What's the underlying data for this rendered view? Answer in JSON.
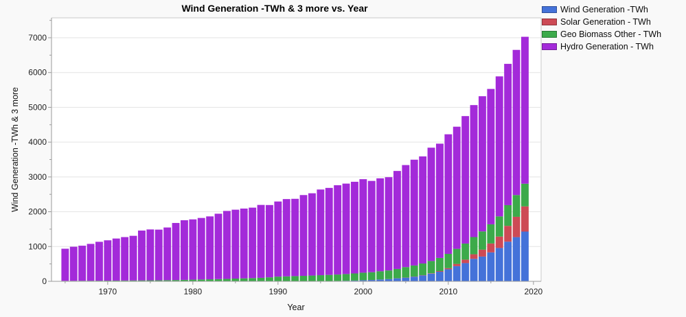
{
  "figure": {
    "background": "#f9f9f9",
    "plot_background": "#ffffff",
    "gridline_color": "#e3e3e3",
    "border_color": "#c9c9c9",
    "axis_color": "#9a9a9a"
  },
  "chart_data": {
    "type": "bar",
    "stacked": true,
    "title": "Wind Generation -TWh & 3 more vs. Year",
    "xlabel": "Year",
    "ylabel": "Wind Generation -TWh & 3 more",
    "legend_position": "top-right",
    "grid": "horizontal-major",
    "xlim": [
      1963.4,
      2020.9
    ],
    "ylim": [
      0,
      7570
    ],
    "yticks": [
      0,
      1000,
      2000,
      3000,
      4000,
      5000,
      6000,
      7000
    ],
    "ytick_minor_step": 500,
    "xticks_major": [
      1970,
      1980,
      1990,
      2000,
      2010,
      2020
    ],
    "xticks_minor": [
      1965,
      1975,
      1985,
      1995,
      2005,
      2015
    ],
    "x": [
      1965,
      1966,
      1967,
      1968,
      1969,
      1970,
      1971,
      1972,
      1973,
      1974,
      1975,
      1976,
      1977,
      1978,
      1979,
      1980,
      1981,
      1982,
      1983,
      1984,
      1985,
      1986,
      1987,
      1988,
      1989,
      1990,
      1991,
      1992,
      1993,
      1994,
      1995,
      1996,
      1997,
      1998,
      1999,
      2000,
      2001,
      2002,
      2003,
      2004,
      2005,
      2006,
      2007,
      2008,
      2009,
      2010,
      2011,
      2012,
      2013,
      2014,
      2015,
      2016,
      2017,
      2018,
      2019
    ],
    "series": [
      {
        "name": "Wind Generation -TWh",
        "color": "#4472d9",
        "values": [
          0,
          0,
          0,
          0,
          0,
          0,
          0,
          0,
          0,
          0,
          0,
          0,
          0,
          0,
          0,
          0,
          0,
          0,
          0,
          0.1,
          0.6,
          1,
          1.5,
          1.9,
          2.7,
          3.9,
          4.5,
          5,
          5.9,
          7.3,
          8.3,
          9.3,
          12,
          15.9,
          21.2,
          31.4,
          38.4,
          52.3,
          62.9,
          85.1,
          104.1,
          132.9,
          170.7,
          220.6,
          275.9,
          346.4,
          436.8,
          523.8,
          645.7,
          712,
          831.8,
          958.5,
          1140.1,
          1270,
          1429.6
        ]
      },
      {
        "name": "Solar Generation - TWh",
        "color": "#cd4a55",
        "values": [
          0,
          0,
          0,
          0,
          0,
          0,
          0,
          0,
          0,
          0,
          0,
          0,
          0,
          0,
          0,
          0,
          0,
          0,
          0,
          0,
          0,
          0,
          0,
          0,
          0,
          0.1,
          0.1,
          0.1,
          0.2,
          0.2,
          0.3,
          0.3,
          0.3,
          0.4,
          0.5,
          1.1,
          1.4,
          1.7,
          2.1,
          2.8,
          4,
          5.4,
          7.4,
          11.9,
          20.1,
          32.2,
          63.6,
          99.5,
          132,
          197.7,
          256.1,
          328.1,
          453.5,
          584.6,
          724.1
        ]
      },
      {
        "name": "Geo Biomass Other - TWh",
        "color": "#3caa4a",
        "values": [
          14,
          15,
          16,
          17,
          18,
          19,
          21,
          23,
          25,
          27,
          29,
          31,
          34,
          37,
          41,
          48,
          53,
          58,
          63,
          70,
          78,
          84,
          91,
          98,
          112,
          131,
          138,
          145,
          151,
          159,
          168,
          175,
          183,
          193,
          205,
          216,
          222,
          235,
          248,
          268,
          300,
          317,
          334,
          352,
          376,
          410,
          434,
          462,
          494,
          525,
          550,
          580,
          596,
          625,
          652
        ]
      },
      {
        "name": "Hydro Generation - TWh",
        "color": "#a32ad9",
        "values": [
          923,
          979,
          1008,
          1059,
          1118,
          1160,
          1209,
          1248,
          1283,
          1432,
          1462,
          1455,
          1513,
          1640,
          1715,
          1732,
          1768,
          1808,
          1880,
          1953,
          1980,
          2006,
          2025,
          2096,
          2078,
          2159,
          2221,
          2221,
          2322,
          2364,
          2462,
          2500,
          2567,
          2599,
          2634,
          2687,
          2624,
          2671,
          2680,
          2816,
          2933,
          3040,
          3078,
          3256,
          3284,
          3437,
          3509,
          3663,
          3793,
          3885,
          3891,
          4023,
          4060,
          4171,
          4222
        ]
      }
    ]
  }
}
